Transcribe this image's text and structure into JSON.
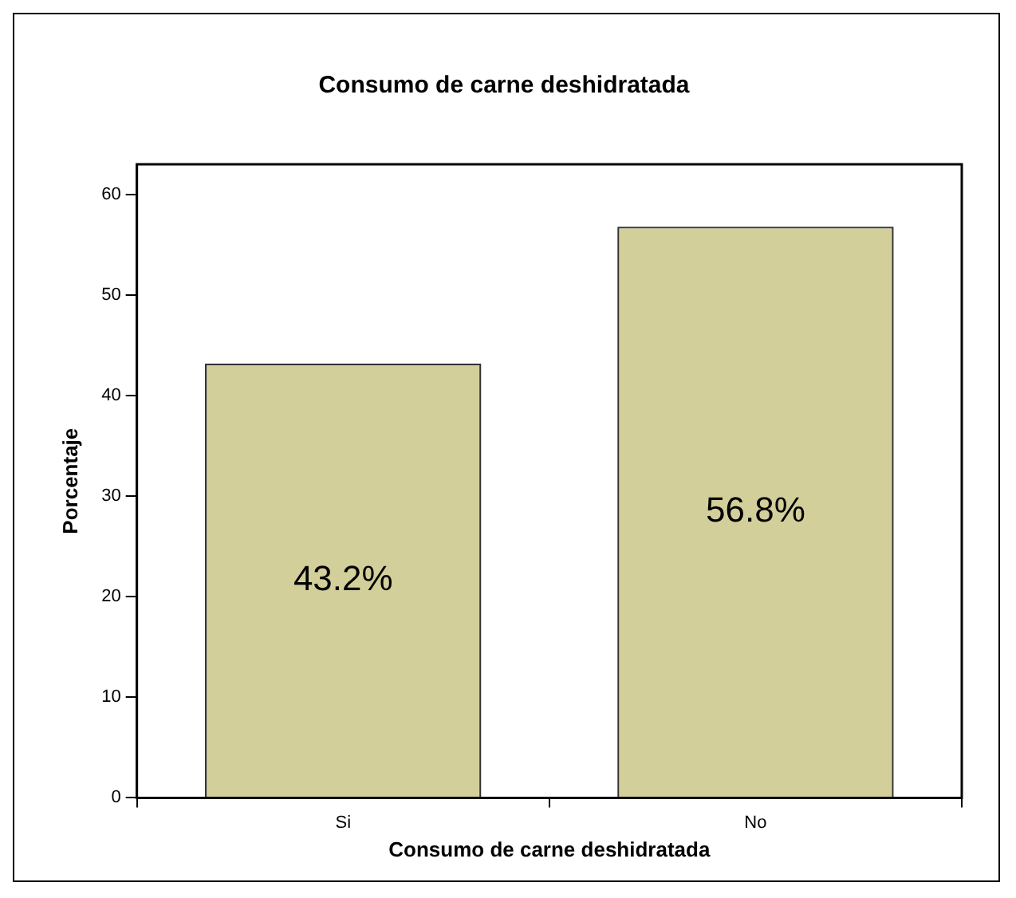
{
  "chart_data": {
    "type": "bar",
    "title": "Consumo de carne deshidratada",
    "xlabel": "Consumo de carne deshidratada",
    "ylabel": "Porcentaje",
    "categories": [
      "Si",
      "No"
    ],
    "values": [
      43.2,
      56.8
    ],
    "color": "#d3cf9a",
    "value_labels": [
      "43.2%",
      "56.8%"
    ],
    "ylim": [
      0,
      63
    ],
    "yticks": [
      0,
      10,
      20,
      30,
      40,
      50,
      60
    ],
    "grid": false,
    "legend": false
  }
}
